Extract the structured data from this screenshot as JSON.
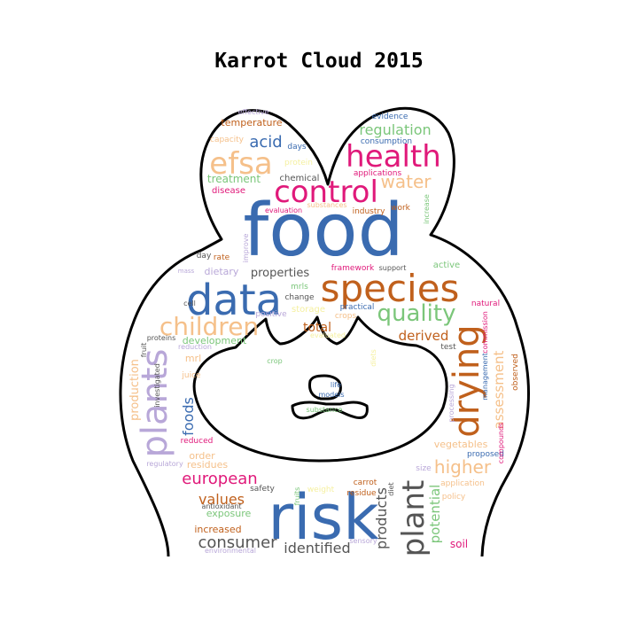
{
  "title": "Karrot Cloud 2015",
  "colors": {
    "blue": "#3a6bb0",
    "orange": "#c0601c",
    "pink": "#e0197a",
    "green": "#7bc67a",
    "purple": "#b8a7d8",
    "peach": "#f5c08a",
    "gray": "#555555",
    "yellow": "#f5f0a0"
  },
  "words": [
    {
      "text": "food",
      "color": "blue"
    },
    {
      "text": "risk",
      "color": "blue"
    },
    {
      "text": "data",
      "color": "blue"
    },
    {
      "text": "species",
      "color": "orange"
    },
    {
      "text": "health",
      "color": "pink"
    },
    {
      "text": "control",
      "color": "pink"
    },
    {
      "text": "efsa",
      "color": "peach"
    },
    {
      "text": "drying",
      "color": "orange"
    },
    {
      "text": "plants",
      "color": "purple"
    },
    {
      "text": "plant",
      "color": "gray"
    },
    {
      "text": "children",
      "color": "peach"
    },
    {
      "text": "quality",
      "color": "green"
    },
    {
      "text": "water",
      "color": "peach"
    },
    {
      "text": "regulation",
      "color": "green"
    },
    {
      "text": "acid",
      "color": "blue"
    },
    {
      "text": "european",
      "color": "pink"
    },
    {
      "text": "higher",
      "color": "peach"
    },
    {
      "text": "values",
      "color": "orange"
    },
    {
      "text": "consumer",
      "color": "gray"
    },
    {
      "text": "identified",
      "color": "gray"
    },
    {
      "text": "products",
      "color": "gray"
    },
    {
      "text": "potential",
      "color": "green"
    },
    {
      "text": "assessment",
      "color": "peach"
    },
    {
      "text": "foods",
      "color": "blue"
    },
    {
      "text": "derived",
      "color": "orange"
    },
    {
      "text": "total",
      "color": "orange"
    },
    {
      "text": "properties",
      "color": "gray"
    },
    {
      "text": "production",
      "color": "peach"
    },
    {
      "text": "development",
      "color": "green"
    },
    {
      "text": "treatment",
      "color": "green"
    },
    {
      "text": "temperature",
      "color": "orange"
    },
    {
      "text": "chemical",
      "color": "gray"
    },
    {
      "text": "disease",
      "color": "pink"
    },
    {
      "text": "industry",
      "color": "orange"
    },
    {
      "text": "work",
      "color": "orange"
    },
    {
      "text": "evidence",
      "color": "blue"
    },
    {
      "text": "consumption",
      "color": "blue"
    },
    {
      "text": "applications",
      "color": "pink"
    },
    {
      "text": "days",
      "color": "blue"
    },
    {
      "text": "protein",
      "color": "yellow"
    },
    {
      "text": "capacity",
      "color": "peach"
    },
    {
      "text": "effective",
      "color": "purple"
    },
    {
      "text": "evaluation",
      "color": "pink"
    },
    {
      "text": "substances",
      "color": "peach"
    },
    {
      "text": "increase",
      "color": "green"
    },
    {
      "text": "framework",
      "color": "pink"
    },
    {
      "text": "support",
      "color": "gray"
    },
    {
      "text": "active",
      "color": "green"
    },
    {
      "text": "dietary",
      "color": "purple"
    },
    {
      "text": "day",
      "color": "gray"
    },
    {
      "text": "rate",
      "color": "orange"
    },
    {
      "text": "improve",
      "color": "purple"
    },
    {
      "text": "mrls",
      "color": "green"
    },
    {
      "text": "change",
      "color": "gray"
    },
    {
      "text": "storage",
      "color": "yellow"
    },
    {
      "text": "practical",
      "color": "blue"
    },
    {
      "text": "positive",
      "color": "purple"
    },
    {
      "text": "crops",
      "color": "peach"
    },
    {
      "text": "natural",
      "color": "pink"
    },
    {
      "text": "cell",
      "color": "gray"
    },
    {
      "text": "fruit",
      "color": "gray"
    },
    {
      "text": "proteins",
      "color": "gray"
    },
    {
      "text": "reduction",
      "color": "purple"
    },
    {
      "text": "mrl",
      "color": "peach"
    },
    {
      "text": "juice",
      "color": "peach"
    },
    {
      "text": "investigated",
      "color": "gray"
    },
    {
      "text": "reduced",
      "color": "pink"
    },
    {
      "text": "order",
      "color": "peach"
    },
    {
      "text": "residues",
      "color": "peach"
    },
    {
      "text": "regulatory",
      "color": "purple"
    },
    {
      "text": "antioxidant",
      "color": "gray"
    },
    {
      "text": "exposure",
      "color": "green"
    },
    {
      "text": "increased",
      "color": "orange"
    },
    {
      "text": "environmental",
      "color": "purple"
    },
    {
      "text": "safety",
      "color": "gray"
    },
    {
      "text": "fruits",
      "color": "green"
    },
    {
      "text": "weight",
      "color": "yellow"
    },
    {
      "text": "carrot",
      "color": "orange"
    },
    {
      "text": "residue",
      "color": "orange"
    },
    {
      "text": "diet",
      "color": "gray"
    },
    {
      "text": "sensory",
      "color": "purple"
    },
    {
      "text": "soil",
      "color": "pink"
    },
    {
      "text": "policy",
      "color": "peach"
    },
    {
      "text": "application",
      "color": "peach"
    },
    {
      "text": "size",
      "color": "purple"
    },
    {
      "text": "vegetables",
      "color": "peach"
    },
    {
      "text": "proposed",
      "color": "blue"
    },
    {
      "text": "processing",
      "color": "purple"
    },
    {
      "text": "management",
      "color": "blue"
    },
    {
      "text": "commission",
      "color": "pink"
    },
    {
      "text": "compounds",
      "color": "pink"
    },
    {
      "text": "observed",
      "color": "orange"
    },
    {
      "text": "test",
      "color": "gray"
    },
    {
      "text": "evaluated",
      "color": "yellow"
    },
    {
      "text": "life",
      "color": "blue"
    },
    {
      "text": "models",
      "color": "blue"
    },
    {
      "text": "substance",
      "color": "green"
    },
    {
      "text": "crop",
      "color": "green"
    },
    {
      "text": "diets",
      "color": "yellow"
    },
    {
      "text": "mass",
      "color": "purple"
    }
  ]
}
